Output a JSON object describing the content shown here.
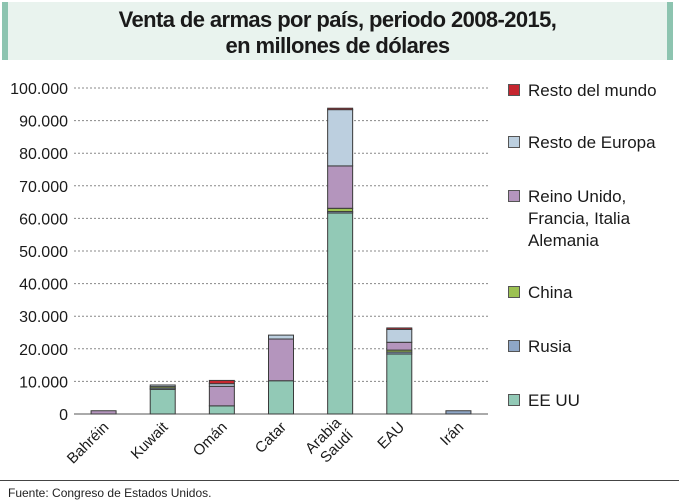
{
  "chart_data": {
    "type": "bar",
    "stacked": true,
    "title": "Venta de armas por país, periodo 2008-2015, en millones de dólares",
    "title_lines": [
      "Venta de armas por país, periodo 2008-2015,",
      "en millones de dólares"
    ],
    "xlabel": "",
    "ylabel": "",
    "ylim": [
      0,
      100000
    ],
    "yticks": [
      0,
      10000,
      20000,
      30000,
      40000,
      50000,
      60000,
      70000,
      80000,
      90000,
      100000
    ],
    "ytick_labels": [
      "0",
      "10.000",
      "20.000",
      "30.000",
      "40.000",
      "50.000",
      "60.000",
      "70.000",
      "80.000",
      "90.000",
      "100.000"
    ],
    "grid": "horizontal-dotted",
    "legend_position": "right",
    "categories": [
      "Bahréin",
      "Kuwait",
      "Omán",
      "Catar",
      "Arabia Saudí",
      "EAU",
      "Irán"
    ],
    "category_label_lines": [
      [
        "Bahréin"
      ],
      [
        "Kuwait"
      ],
      [
        "Omán"
      ],
      [
        "Catar"
      ],
      [
        "Arabia",
        "Saudí"
      ],
      [
        "EAU"
      ],
      [
        "Irán"
      ]
    ],
    "series": [
      {
        "name": "EE UU",
        "color": "#92c9b6",
        "values": [
          0,
          7700,
          2500,
          10200,
          61800,
          18400,
          0
        ]
      },
      {
        "name": "Rusia",
        "color": "#8ea6c6",
        "values": [
          0,
          300,
          0,
          0,
          300,
          600,
          1000
        ]
      },
      {
        "name": "China",
        "color": "#9cc152",
        "values": [
          0,
          400,
          0,
          0,
          1000,
          600,
          0
        ]
      },
      {
        "name": "Reino Unido, Francia, Italia Alemania",
        "color": "#b495bd",
        "values": [
          1000,
          0,
          6000,
          12800,
          13000,
          2400,
          0
        ]
      },
      {
        "name": "Resto de Europa",
        "color": "#bccfdf",
        "values": [
          0,
          500,
          800,
          1200,
          17300,
          4000,
          0
        ]
      },
      {
        "name": "Resto del mundo",
        "color": "#c6262f",
        "values": [
          0,
          0,
          1000,
          0,
          400,
          400,
          0
        ]
      }
    ]
  },
  "legend": [
    {
      "label": "Resto del mundo",
      "color": "#c6262f"
    },
    {
      "label": "Resto de Europa",
      "color": "#bccfdf"
    },
    {
      "label": "Reino Unido,\nFrancia, Italia\nAlemania",
      "color": "#b495bd"
    },
    {
      "label": "China",
      "color": "#9cc152"
    },
    {
      "label": "Rusia",
      "color": "#8ea6c6"
    },
    {
      "label": "EE UU",
      "color": "#92c9b6"
    }
  ],
  "source": "Fuente: Congreso de Estados Unidos.",
  "colors": {
    "title_bg": "#e9f3ee",
    "title_accent": "#8dc4b0"
  }
}
